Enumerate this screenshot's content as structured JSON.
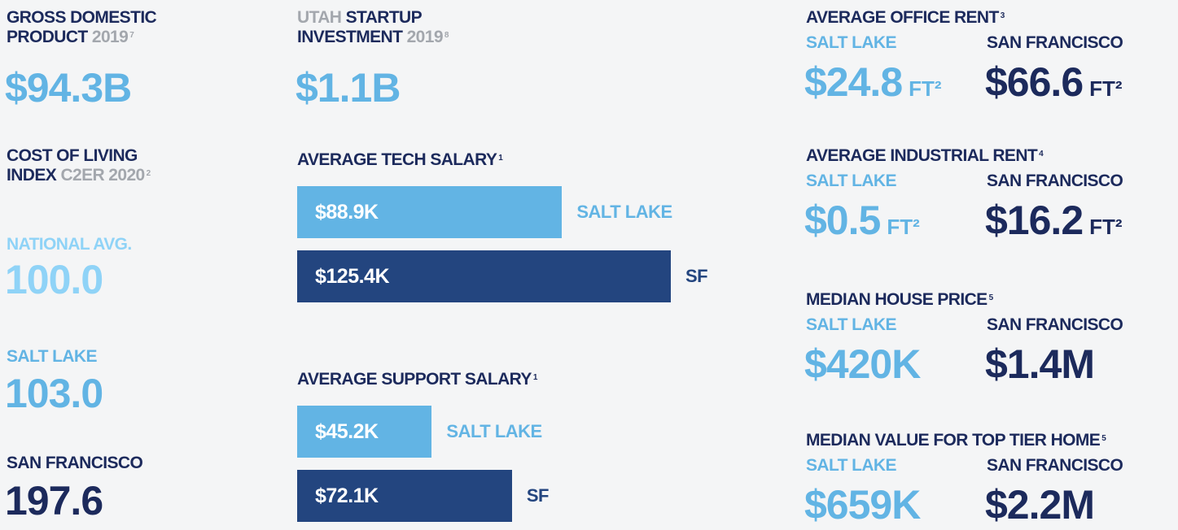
{
  "gdp": {
    "line1": "GROSS DOMESTIC",
    "line2": "PRODUCT",
    "year": "2019",
    "note": "7",
    "value": "$94.3B"
  },
  "cost_of_living": {
    "line1": "COST OF LIVING",
    "line2": "INDEX",
    "source": "C2ER 2020",
    "note": "2",
    "national": {
      "label": "NATIONAL AVG.",
      "value": "100.0"
    },
    "salt_lake": {
      "label": "SALT LAKE",
      "value": "103.0"
    },
    "san_francisco": {
      "label": "SAN FRANCISCO",
      "value": "197.6"
    }
  },
  "startup": {
    "prefix": "UTAH",
    "line1": "STARTUP",
    "line2": "INVESTMENT",
    "year": "2019",
    "note": "8",
    "value": "$1.1B"
  },
  "chart_data": [
    {
      "type": "bar",
      "title": "AVERAGE TECH SALARY",
      "note": "1",
      "categories": [
        "SALT LAKE",
        "SF"
      ],
      "values": [
        88.9,
        125.4
      ],
      "value_labels": [
        "$88.9K",
        "$125.4K"
      ],
      "colors": [
        "#62b4e4",
        "#23457f"
      ]
    },
    {
      "type": "bar",
      "title": "AVERAGE SUPPORT SALARY",
      "note": "1",
      "categories": [
        "SALT LAKE",
        "SF"
      ],
      "values": [
        45.2,
        72.1
      ],
      "value_labels": [
        "$45.2K",
        "$72.1K"
      ],
      "colors": [
        "#62b4e4",
        "#23457f"
      ]
    }
  ],
  "comparisons": [
    {
      "title": "AVERAGE OFFICE RENT",
      "note": "3",
      "left_label": "SALT LAKE",
      "right_label": "SAN FRANCISCO",
      "left_value": "$24.8",
      "left_unit": "FT²",
      "right_value": "$66.6",
      "right_unit": "FT²"
    },
    {
      "title": "AVERAGE INDUSTRIAL RENT",
      "note": "4",
      "left_label": "SALT LAKE",
      "right_label": "SAN FRANCISCO",
      "left_value": "$0.5",
      "left_unit": "FT²",
      "right_value": "$16.2",
      "right_unit": "FT²"
    },
    {
      "title": "MEDIAN HOUSE PRICE",
      "note": "5",
      "left_label": "SALT LAKE",
      "right_label": "SAN FRANCISCO",
      "left_value": "$420K",
      "right_value": "$1.4M"
    },
    {
      "title": "MEDIAN VALUE FOR TOP TIER HOME",
      "note": "5",
      "left_label": "SALT LAKE",
      "right_label": "SAN FRANCISCO",
      "left_value": "$659K",
      "right_value": "$2.2M"
    }
  ]
}
